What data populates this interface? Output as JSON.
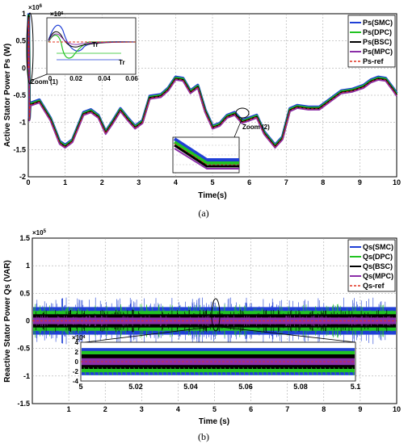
{
  "figure": {
    "panels": [
      {
        "caption": "(a)",
        "multiplier": "×10",
        "multiplier_exp": "6",
        "zoom_labels": [
          "Zoom (1)",
          "Zoom (2)"
        ],
        "annotations": [
          "Tr"
        ]
      },
      {
        "caption": "(b)",
        "multiplier": "×10",
        "multiplier_exp": "5",
        "inset_multiplier": "×10",
        "inset_multiplier_exp": "4"
      }
    ]
  },
  "colors": {
    "SMC": "#1f3fd6",
    "DPC": "#22c322",
    "BSC": "#000000",
    "MPC": "#8b2fa8",
    "ref": "#e0301e"
  },
  "chart_data": [
    {
      "type": "line",
      "xlabel": "Time(s)",
      "ylabel": "Active Stator Power Ps (W)",
      "xlim": [
        0,
        10
      ],
      "ylim": [
        -2,
        1
      ],
      "y_multiplier": "×10^6",
      "grid": true,
      "legend_position": "top-right",
      "xticks": [
        "0",
        "1",
        "2",
        "3",
        "4",
        "5",
        "6",
        "7",
        "8",
        "9",
        "10"
      ],
      "yticks": [
        "-2",
        "-1.5",
        "-1",
        "-0.5",
        "0",
        "0.5",
        "1"
      ],
      "series": [
        {
          "name": "Ps(SMC)"
        },
        {
          "name": "Ps(DPC)"
        },
        {
          "name": "Ps(BSC)"
        },
        {
          "name": "Ps(MPC)"
        },
        {
          "name": "Ps-ref"
        }
      ],
      "x": [
        0,
        0.05,
        0.3,
        0.6,
        0.85,
        1.0,
        1.2,
        1.5,
        1.7,
        1.9,
        2.1,
        2.3,
        2.5,
        2.7,
        2.9,
        3.1,
        3.3,
        3.6,
        3.8,
        4.0,
        4.2,
        4.4,
        4.6,
        4.8,
        5.0,
        5.2,
        5.4,
        5.6,
        5.8,
        6.0,
        6.2,
        6.4,
        6.7,
        6.9,
        7.1,
        7.3,
        7.6,
        7.9,
        8.2,
        8.5,
        8.8,
        9.1,
        9.3,
        9.5,
        9.7,
        9.9,
        10.0
      ],
      "ps_ref": [
        0,
        -0.68,
        -0.62,
        -0.95,
        -1.38,
        -1.45,
        -1.35,
        -0.85,
        -0.8,
        -0.9,
        -1.2,
        -1.0,
        -0.78,
        -0.95,
        -1.1,
        -1.0,
        -0.55,
        -0.52,
        -0.4,
        -0.2,
        -0.22,
        -0.45,
        -0.35,
        -0.8,
        -1.1,
        -1.05,
        -0.9,
        -0.85,
        -1.0,
        -0.95,
        -0.9,
        -1.2,
        -1.45,
        -1.3,
        -0.78,
        -0.72,
        -0.75,
        -0.75,
        -0.6,
        -0.45,
        -0.42,
        -0.35,
        -0.25,
        -0.2,
        -0.22,
        -0.4,
        -0.5
      ],
      "zoom1": {
        "xlim": [
          0,
          0.06
        ],
        "xticks": [
          "0",
          "0.02",
          "0.04",
          "0.06"
        ],
        "y_multiplier": "×10^6",
        "annotation": "Tr"
      }
    },
    {
      "type": "line",
      "xlabel": "Time (s)",
      "ylabel": "Reactive Stator Power Qs (VAR)",
      "xlim": [
        0,
        10
      ],
      "ylim": [
        -1.5,
        1.5
      ],
      "y_multiplier": "×10^5",
      "grid": true,
      "legend_position": "top-right",
      "xticks": [
        "1",
        "2",
        "3",
        "4",
        "5",
        "6",
        "7",
        "8",
        "9",
        "10"
      ],
      "yticks": [
        "-1.5",
        "-1",
        "-0.5",
        "0",
        "0.5",
        "1",
        "1.5"
      ],
      "series": [
        {
          "name": "Qs(SMC)",
          "band": [
            -0.25,
            0.25
          ]
        },
        {
          "name": "Qs(DPC)",
          "band": [
            -0.18,
            0.18
          ]
        },
        {
          "name": "Qs(BSC)",
          "band": [
            -0.12,
            0.12
          ]
        },
        {
          "name": "Qs(MPC)",
          "band": [
            -0.06,
            0.06
          ]
        },
        {
          "name": "Qs-ref",
          "value": 0
        }
      ],
      "zoom": {
        "xlim": [
          5,
          5.1
        ],
        "ylim": [
          -4,
          4
        ],
        "y_multiplier": "×10^4",
        "xticks": [
          "5",
          "5.02",
          "5.04",
          "5.06",
          "5.08",
          "5.1"
        ],
        "yticks": [
          "-4",
          "-2",
          "0",
          "2",
          "4"
        ]
      }
    }
  ]
}
